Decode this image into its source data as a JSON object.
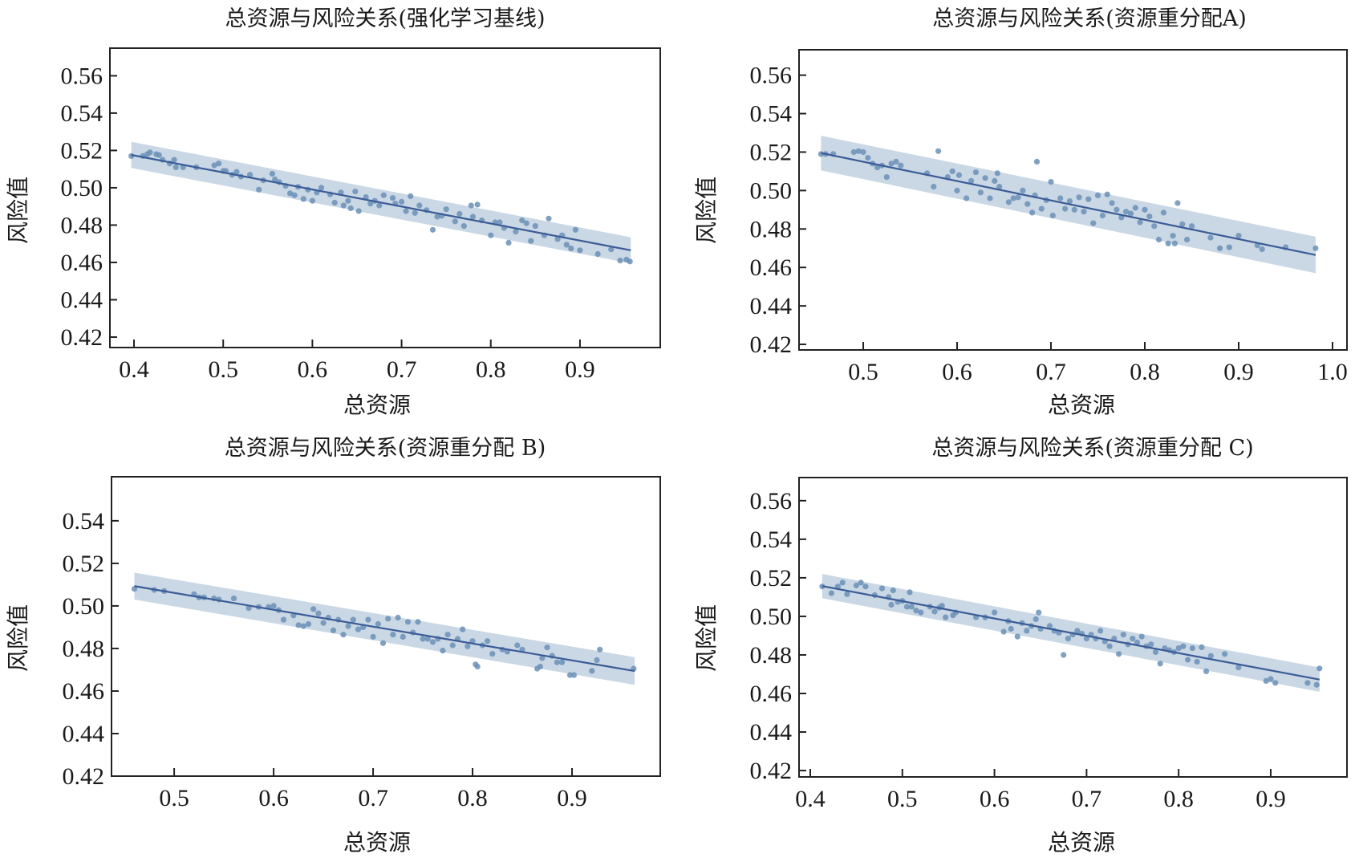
{
  "colors": {
    "point": "#6b90b7",
    "line": "#3a5c97",
    "band": "#b8c9db",
    "axis": "#222222"
  },
  "chart_data": [
    {
      "type": "scatter",
      "title": "总资源与风险关系(强化学习基线)",
      "xlabel": "总资源",
      "ylabel": "风险值",
      "xlim": [
        0.373,
        0.99
      ],
      "ylim": [
        0.4144,
        0.5748
      ],
      "xticks": [
        0.4,
        0.5,
        0.6,
        0.7,
        0.8,
        0.9
      ],
      "xtick_labels": [
        "0.4",
        "0.5",
        "0.6",
        "0.7",
        "0.8",
        "0.9"
      ],
      "yticks": [
        0.42,
        0.44,
        0.46,
        0.48,
        0.5,
        0.52,
        0.54,
        0.56
      ],
      "ytick_labels": [
        "0.42",
        "0.44",
        "0.46",
        "0.48",
        "0.50",
        "0.52",
        "0.54",
        "0.56"
      ],
      "regression": {
        "x": [
          0.397,
          0.957
        ],
        "y": [
          0.5176,
          0.4665
        ],
        "ci_halfwidth_start": 0.007,
        "ci_halfwidth_end": 0.007
      },
      "points": {
        "x": [
          0.397,
          0.41,
          0.415,
          0.418,
          0.425,
          0.428,
          0.432,
          0.44,
          0.445,
          0.447,
          0.455,
          0.47,
          0.49,
          0.495,
          0.5,
          0.503,
          0.51,
          0.515,
          0.52,
          0.53,
          0.54,
          0.545,
          0.555,
          0.558,
          0.563,
          0.57,
          0.575,
          0.58,
          0.584,
          0.59,
          0.595,
          0.6,
          0.605,
          0.61,
          0.62,
          0.625,
          0.632,
          0.635,
          0.64,
          0.643,
          0.648,
          0.652,
          0.66,
          0.665,
          0.67,
          0.675,
          0.68,
          0.69,
          0.693,
          0.7,
          0.705,
          0.71,
          0.715,
          0.72,
          0.728,
          0.735,
          0.74,
          0.745,
          0.75,
          0.76,
          0.765,
          0.77,
          0.778,
          0.78,
          0.785,
          0.79,
          0.8,
          0.805,
          0.81,
          0.815,
          0.82,
          0.828,
          0.835,
          0.84,
          0.845,
          0.85,
          0.86,
          0.865,
          0.875,
          0.88,
          0.885,
          0.89,
          0.895,
          0.9,
          0.92,
          0.935,
          0.945,
          0.952,
          0.956
        ],
        "y": [
          0.517,
          0.517,
          0.518,
          0.519,
          0.518,
          0.5175,
          0.515,
          0.513,
          0.515,
          0.511,
          0.511,
          0.511,
          0.512,
          0.513,
          0.509,
          0.509,
          0.507,
          0.5085,
          0.506,
          0.507,
          0.499,
          0.504,
          0.5075,
          0.5045,
          0.503,
          0.501,
          0.497,
          0.496,
          0.5005,
          0.494,
          0.499,
          0.493,
          0.4975,
          0.5,
          0.4965,
          0.492,
          0.4975,
          0.4905,
          0.493,
          0.489,
          0.498,
          0.4875,
          0.495,
          0.4915,
          0.493,
          0.4905,
          0.496,
          0.4945,
          0.4915,
          0.4925,
          0.4875,
          0.4955,
          0.4865,
          0.4905,
          0.488,
          0.4775,
          0.4845,
          0.485,
          0.4885,
          0.482,
          0.486,
          0.4795,
          0.4905,
          0.4845,
          0.491,
          0.4825,
          0.4745,
          0.4815,
          0.4815,
          0.4785,
          0.4705,
          0.4765,
          0.4825,
          0.481,
          0.4715,
          0.4795,
          0.4745,
          0.4835,
          0.4725,
          0.4745,
          0.4695,
          0.4675,
          0.4775,
          0.4665,
          0.4645,
          0.467,
          0.461,
          0.4615,
          0.4605
        ]
      }
    },
    {
      "type": "scatter",
      "title": "总资源与风险关系(资源重分配A)",
      "xlabel": "总资源",
      "ylabel": "风险值",
      "xlim": [
        0.4316,
        1.0154
      ],
      "ylim": [
        0.4171,
        0.5732
      ],
      "xticks": [
        0.5,
        0.6,
        0.7,
        0.8,
        0.9,
        1.0
      ],
      "xtick_labels": [
        "0.5",
        "0.6",
        "0.7",
        "0.8",
        "0.9",
        "1.0"
      ],
      "yticks": [
        0.42,
        0.44,
        0.46,
        0.48,
        0.5,
        0.52,
        0.54,
        0.56
      ],
      "ytick_labels": [
        "0.42",
        "0.44",
        "0.46",
        "0.48",
        "0.50",
        "0.52",
        "0.54",
        "0.56"
      ],
      "regression": {
        "x": [
          0.455,
          0.982
        ],
        "y": [
          0.5195,
          0.4665
        ],
        "ci_halfwidth_start": 0.009,
        "ci_halfwidth_end": 0.0095
      },
      "points": {
        "x": [
          0.455,
          0.46,
          0.468,
          0.49,
          0.495,
          0.5,
          0.505,
          0.51,
          0.515,
          0.52,
          0.525,
          0.53,
          0.535,
          0.54,
          0.568,
          0.575,
          0.58,
          0.59,
          0.595,
          0.6,
          0.602,
          0.61,
          0.615,
          0.62,
          0.625,
          0.63,
          0.635,
          0.64,
          0.643,
          0.645,
          0.655,
          0.66,
          0.665,
          0.67,
          0.675,
          0.68,
          0.683,
          0.685,
          0.69,
          0.695,
          0.7,
          0.702,
          0.71,
          0.715,
          0.72,
          0.725,
          0.73,
          0.735,
          0.74,
          0.745,
          0.75,
          0.755,
          0.76,
          0.765,
          0.77,
          0.775,
          0.78,
          0.785,
          0.79,
          0.795,
          0.8,
          0.805,
          0.81,
          0.815,
          0.82,
          0.825,
          0.83,
          0.832,
          0.835,
          0.84,
          0.845,
          0.85,
          0.87,
          0.88,
          0.89,
          0.9,
          0.92,
          0.925,
          0.95,
          0.982
        ],
        "y": [
          0.519,
          0.519,
          0.519,
          0.52,
          0.5205,
          0.52,
          0.517,
          0.514,
          0.512,
          0.513,
          0.507,
          0.514,
          0.515,
          0.513,
          0.509,
          0.502,
          0.5205,
          0.507,
          0.51,
          0.5,
          0.508,
          0.496,
          0.505,
          0.5095,
          0.499,
          0.5065,
          0.496,
          0.505,
          0.509,
          0.502,
          0.494,
          0.496,
          0.4965,
          0.5,
          0.493,
          0.4885,
          0.4975,
          0.515,
          0.4905,
          0.495,
          0.5045,
          0.487,
          0.496,
          0.4905,
          0.4945,
          0.49,
          0.4965,
          0.489,
          0.4955,
          0.483,
          0.4975,
          0.487,
          0.498,
          0.4935,
          0.49,
          0.486,
          0.489,
          0.488,
          0.491,
          0.4835,
          0.49,
          0.4865,
          0.4815,
          0.4745,
          0.4885,
          0.4725,
          0.4765,
          0.4725,
          0.4935,
          0.4825,
          0.4745,
          0.4815,
          0.4755,
          0.47,
          0.4705,
          0.4765,
          0.4715,
          0.4695,
          0.4705,
          0.47
        ]
      }
    },
    {
      "type": "scatter",
      "title": "总资源与风险关系(资源重分配 B)",
      "xlabel": "总资源",
      "ylabel": "风险值",
      "xlim": [
        0.437,
        0.9887
      ],
      "ylim": [
        0.42,
        0.5607
      ],
      "xticks": [
        0.5,
        0.6,
        0.7,
        0.8,
        0.9
      ],
      "xtick_labels": [
        "0.5",
        "0.6",
        "0.7",
        "0.8",
        "0.9"
      ],
      "yticks": [
        0.42,
        0.44,
        0.46,
        0.48,
        0.5,
        0.52,
        0.54
      ],
      "ytick_labels": [
        "0.42",
        "0.44",
        "0.46",
        "0.48",
        "0.50",
        "0.52",
        "0.54"
      ],
      "regression": {
        "x": [
          0.46,
          0.963
        ],
        "y": [
          0.5093,
          0.4694
        ],
        "ci_halfwidth_start": 0.0063,
        "ci_halfwidth_end": 0.0065
      },
      "points": {
        "x": [
          0.46,
          0.48,
          0.49,
          0.52,
          0.525,
          0.53,
          0.54,
          0.545,
          0.56,
          0.575,
          0.585,
          0.595,
          0.6,
          0.605,
          0.61,
          0.62,
          0.625,
          0.63,
          0.635,
          0.64,
          0.645,
          0.65,
          0.655,
          0.66,
          0.665,
          0.67,
          0.675,
          0.68,
          0.685,
          0.69,
          0.695,
          0.7,
          0.705,
          0.71,
          0.715,
          0.72,
          0.725,
          0.73,
          0.735,
          0.74,
          0.745,
          0.75,
          0.755,
          0.76,
          0.765,
          0.77,
          0.775,
          0.78,
          0.785,
          0.79,
          0.795,
          0.8,
          0.803,
          0.805,
          0.81,
          0.815,
          0.82,
          0.83,
          0.835,
          0.845,
          0.85,
          0.865,
          0.868,
          0.87,
          0.875,
          0.88,
          0.885,
          0.89,
          0.898,
          0.902,
          0.92,
          0.925,
          0.928,
          0.962
        ],
        "y": [
          0.508,
          0.5075,
          0.507,
          0.5055,
          0.504,
          0.504,
          0.5035,
          0.503,
          0.5035,
          0.499,
          0.4995,
          0.4995,
          0.5,
          0.498,
          0.4935,
          0.4955,
          0.491,
          0.4905,
          0.4915,
          0.4985,
          0.4965,
          0.492,
          0.4945,
          0.4885,
          0.4935,
          0.4865,
          0.4905,
          0.4935,
          0.489,
          0.49,
          0.4935,
          0.4855,
          0.4915,
          0.4825,
          0.494,
          0.4865,
          0.4945,
          0.4855,
          0.4925,
          0.4875,
          0.4925,
          0.4845,
          0.4845,
          0.483,
          0.4845,
          0.479,
          0.4865,
          0.4815,
          0.4845,
          0.489,
          0.481,
          0.4835,
          0.4725,
          0.4715,
          0.4815,
          0.4835,
          0.4775,
          0.4795,
          0.4785,
          0.4815,
          0.4795,
          0.4705,
          0.4715,
          0.4755,
          0.4805,
          0.4765,
          0.4735,
          0.4735,
          0.4675,
          0.4675,
          0.4695,
          0.4745,
          0.4795,
          0.4705
        ]
      }
    },
    {
      "type": "scatter",
      "title": "总资源与风险关系(资源重分配 C)",
      "xlabel": "总资源",
      "ylabel": "风险值",
      "xlim": [
        0.3878,
        0.9828
      ],
      "ylim": [
        0.4167,
        0.572
      ],
      "xticks": [
        0.4,
        0.5,
        0.6,
        0.7,
        0.8,
        0.9
      ],
      "xtick_labels": [
        "0.4",
        "0.5",
        "0.6",
        "0.7",
        "0.8",
        "0.9"
      ],
      "yticks": [
        0.42,
        0.44,
        0.46,
        0.48,
        0.5,
        0.52,
        0.54,
        0.56
      ],
      "ytick_labels": [
        "0.42",
        "0.44",
        "0.46",
        "0.48",
        "0.50",
        "0.52",
        "0.54",
        "0.56"
      ],
      "regression": {
        "x": [
          0.413,
          0.953
        ],
        "y": [
          0.5157,
          0.4672
        ],
        "ci_halfwidth_start": 0.0063,
        "ci_halfwidth_end": 0.0063
      },
      "points": {
        "x": [
          0.413,
          0.423,
          0.43,
          0.435,
          0.44,
          0.45,
          0.455,
          0.46,
          0.47,
          0.478,
          0.485,
          0.488,
          0.49,
          0.495,
          0.5,
          0.505,
          0.508,
          0.51,
          0.515,
          0.52,
          0.53,
          0.535,
          0.54,
          0.543,
          0.547,
          0.555,
          0.558,
          0.58,
          0.59,
          0.6,
          0.61,
          0.615,
          0.618,
          0.625,
          0.63,
          0.635,
          0.64,
          0.645,
          0.648,
          0.65,
          0.66,
          0.665,
          0.67,
          0.675,
          0.68,
          0.685,
          0.69,
          0.695,
          0.7,
          0.705,
          0.71,
          0.715,
          0.72,
          0.725,
          0.73,
          0.735,
          0.74,
          0.745,
          0.75,
          0.755,
          0.76,
          0.765,
          0.77,
          0.775,
          0.78,
          0.785,
          0.79,
          0.795,
          0.8,
          0.805,
          0.81,
          0.815,
          0.82,
          0.825,
          0.83,
          0.835,
          0.85,
          0.865,
          0.895,
          0.9,
          0.905,
          0.94,
          0.95,
          0.953
        ],
        "y": [
          0.5155,
          0.512,
          0.5155,
          0.5175,
          0.5115,
          0.516,
          0.5175,
          0.5155,
          0.511,
          0.5145,
          0.51,
          0.506,
          0.5135,
          0.5075,
          0.508,
          0.505,
          0.5125,
          0.505,
          0.503,
          0.502,
          0.505,
          0.5025,
          0.5045,
          0.5055,
          0.4995,
          0.5005,
          0.502,
          0.4995,
          0.4995,
          0.502,
          0.492,
          0.4975,
          0.4935,
          0.4895,
          0.4965,
          0.4925,
          0.495,
          0.4985,
          0.502,
          0.4935,
          0.495,
          0.4925,
          0.4915,
          0.48,
          0.4885,
          0.4905,
          0.4925,
          0.491,
          0.4885,
          0.4905,
          0.4885,
          0.4925,
          0.487,
          0.4845,
          0.4885,
          0.4805,
          0.4905,
          0.4855,
          0.4885,
          0.4865,
          0.4895,
          0.4845,
          0.4855,
          0.4815,
          0.4755,
          0.4835,
          0.4825,
          0.4815,
          0.4835,
          0.4845,
          0.4775,
          0.4835,
          0.4765,
          0.484,
          0.4715,
          0.4795,
          0.4805,
          0.4735,
          0.4665,
          0.4675,
          0.4655,
          0.4655,
          0.4645,
          0.473
        ]
      }
    }
  ]
}
